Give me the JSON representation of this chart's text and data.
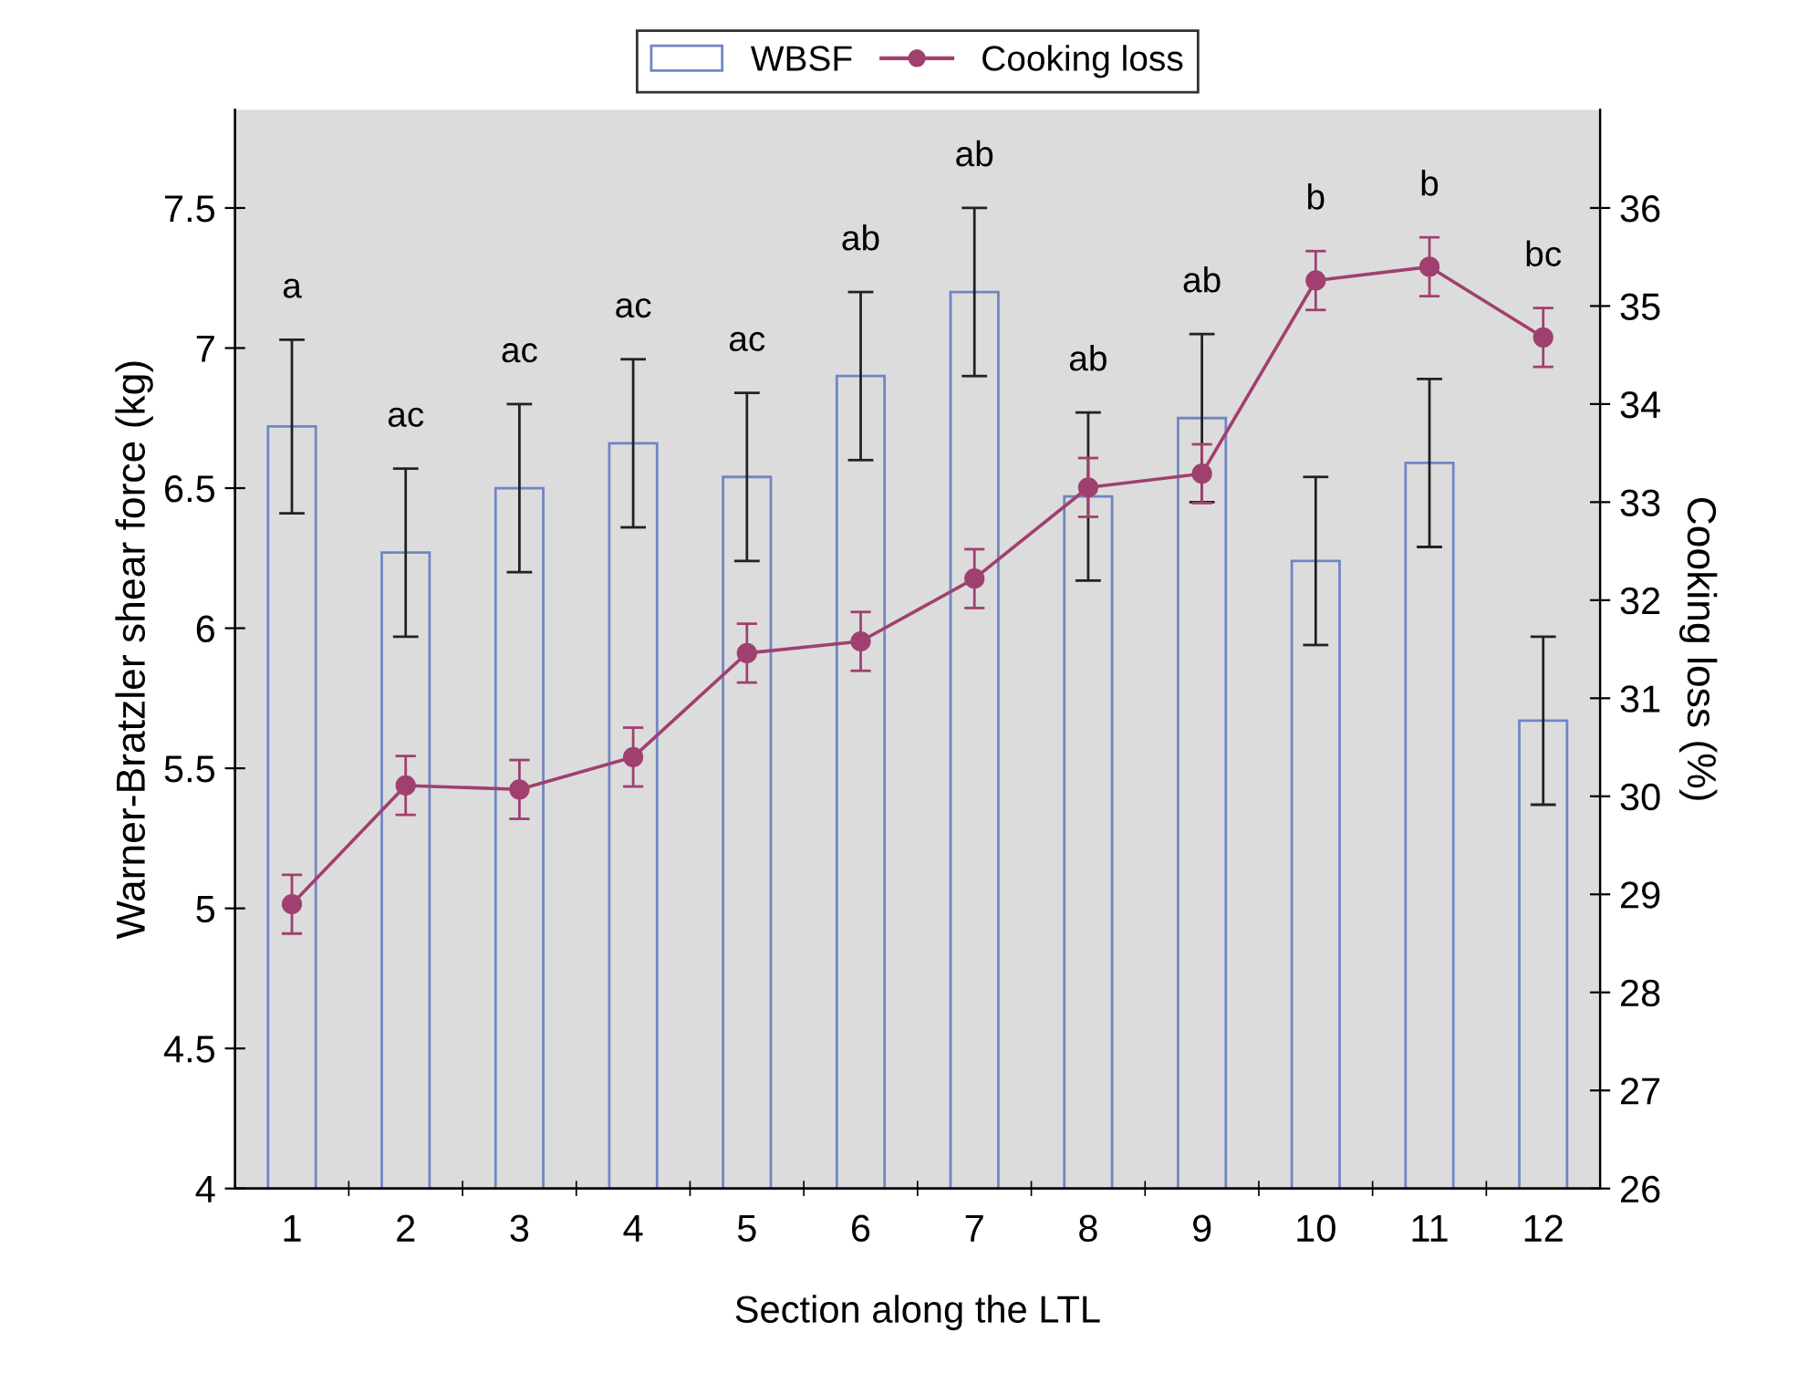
{
  "chart_data": {
    "type": "bar",
    "categories": [
      "1",
      "2",
      "3",
      "4",
      "5",
      "6",
      "7",
      "8",
      "9",
      "10",
      "11",
      "12"
    ],
    "xlabel": "Section along the LTL",
    "ylabel": "Warner-Bratzler shear force (kg)",
    "y2label": "Cooking loss (%)",
    "series": [
      {
        "name": "WBSF",
        "color": "#6f86c4",
        "values": [
          6.72,
          6.27,
          6.5,
          6.66,
          6.54,
          6.9,
          7.2,
          6.47,
          6.75,
          6.24,
          6.59,
          5.67
        ],
        "errors": [
          0.31,
          0.3,
          0.3,
          0.3,
          0.3,
          0.3,
          0.3,
          0.3,
          0.3,
          0.3,
          0.3,
          0.3
        ]
      },
      {
        "name": "Cooking loss",
        "type": "line",
        "axis": "y2",
        "color": "#a0406f",
        "marker": "circle",
        "line_style": "solid",
        "values": [
          28.9,
          30.11,
          30.07,
          30.4,
          31.46,
          31.58,
          32.22,
          33.15,
          33.29,
          35.26,
          35.4,
          34.68
        ],
        "errors": [
          0.3,
          0.3,
          0.3,
          0.3,
          0.3,
          0.3,
          0.3,
          0.3,
          0.3,
          0.3,
          0.3,
          0.3
        ]
      }
    ],
    "ylim": [
      4,
      7.85
    ],
    "yticks": [
      4,
      4.5,
      5,
      5.5,
      6,
      6.5,
      7,
      7.5
    ],
    "y2lim": [
      26,
      37
    ],
    "y2ticks": [
      26,
      27,
      28,
      29,
      30,
      31,
      32,
      33,
      34,
      35,
      36
    ],
    "grid": false,
    "legend": "top",
    "annotations": [
      "a",
      "ac",
      "ac",
      "ac",
      "ac",
      "ab",
      "ab",
      "ab",
      "ab",
      "b",
      "b",
      "bc"
    ]
  }
}
